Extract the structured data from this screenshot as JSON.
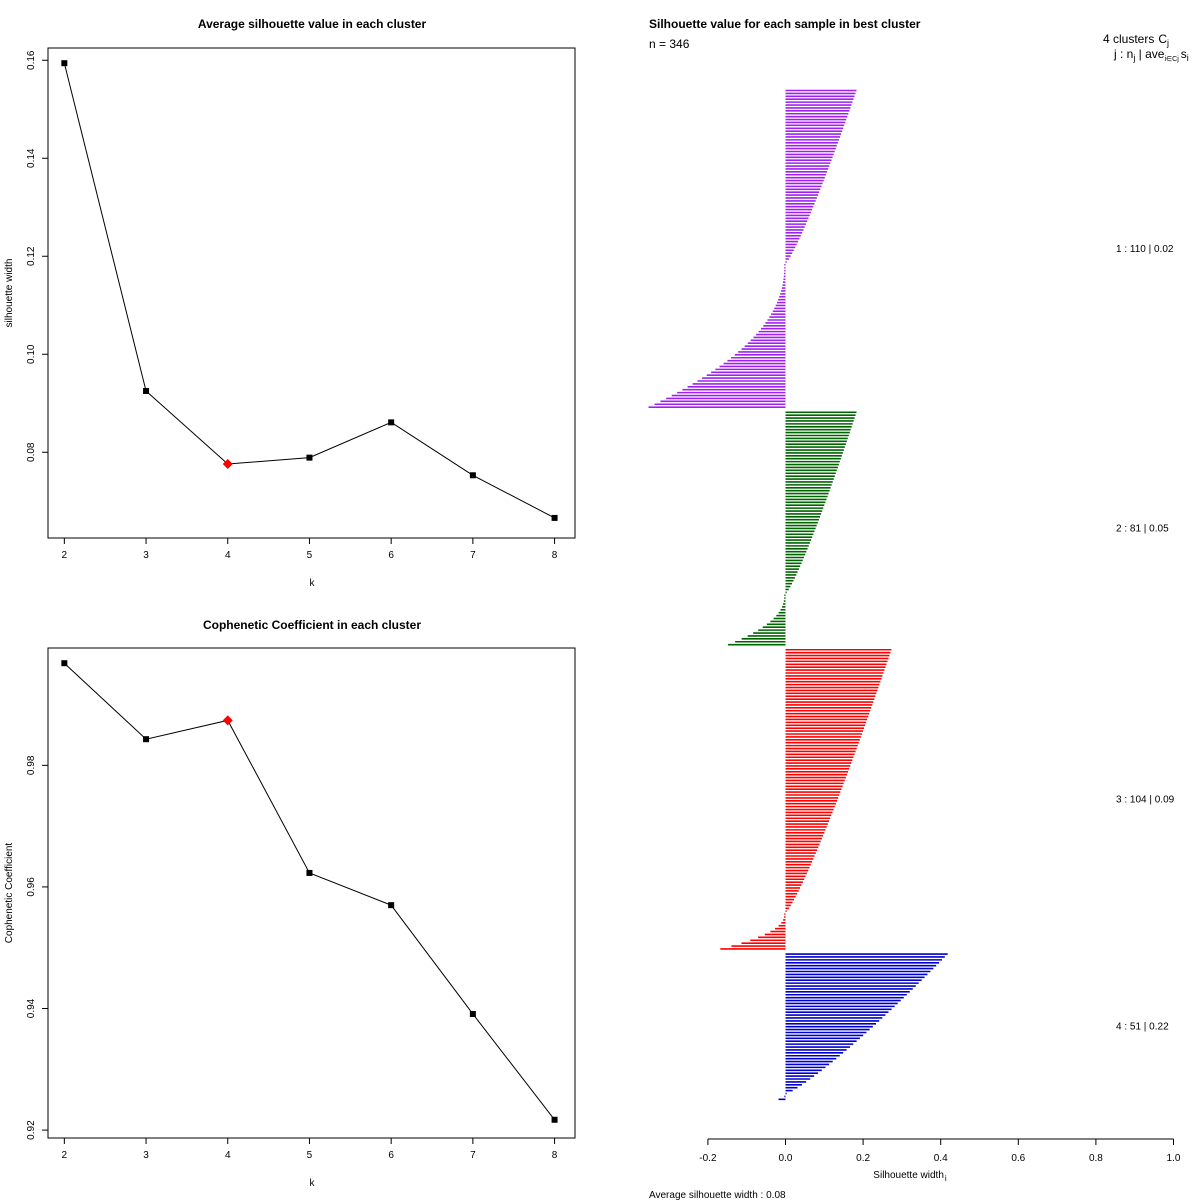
{
  "chart_data": [
    {
      "type": "line",
      "title": "Average silhouette value in each cluster",
      "xlabel": "k",
      "ylabel": "silhouette width",
      "x": [
        2,
        3,
        4,
        5,
        6,
        7,
        8
      ],
      "values": [
        0.1594,
        0.0925,
        0.0776,
        0.0789,
        0.0861,
        0.0753,
        0.0666
      ],
      "highlight_k": 4,
      "xlim": [
        1.8,
        8.25
      ],
      "ylim": [
        0.0625,
        0.1625
      ],
      "x_ticks": [
        2,
        3,
        4,
        5,
        6,
        7,
        8
      ],
      "y_ticks": [
        0.08,
        0.1,
        0.12,
        0.14,
        0.16
      ],
      "y_tick_labels": [
        "0.08",
        "0.10",
        "0.12",
        "0.14",
        "0.16"
      ],
      "colors": {
        "line": "#000000",
        "point": "#000000",
        "highlight": "#ff0000"
      }
    },
    {
      "type": "line",
      "title": "Cophenetic Coefficient in each cluster",
      "xlabel": "k",
      "ylabel": "Cophenetic Coefficient",
      "x": [
        2,
        3,
        4,
        5,
        6,
        7,
        8
      ],
      "values": [
        0.9968,
        0.9843,
        0.9874,
        0.9623,
        0.957,
        0.9391,
        0.9217
      ],
      "highlight_k": 4,
      "xlim": [
        1.8,
        8.25
      ],
      "ylim": [
        0.9187,
        0.9993
      ],
      "x_ticks": [
        2,
        3,
        4,
        5,
        6,
        7,
        8
      ],
      "y_ticks": [
        0.92,
        0.94,
        0.96,
        0.98
      ],
      "y_tick_labels": [
        "0.92",
        "0.94",
        "0.96",
        "0.98"
      ],
      "colors": {
        "line": "#000000",
        "point": "#000000",
        "highlight": "#ff0000"
      }
    },
    {
      "type": "bar",
      "orientation": "horizontal",
      "title": "Silhouette value for each sample in best cluster",
      "n_label": "n = 346",
      "header_line1": "4 clusters",
      "header_c": "C",
      "header_c_sub": "j",
      "header_line2": "j :  n",
      "header_n_sub": "j",
      "header_line2b": " | ave",
      "header_ave_sub": "i∈Cj",
      "header_s": "s",
      "header_s_sub": "i",
      "xlabel": "Silhouette width",
      "xlabel_sub": "i",
      "xlim": [
        -0.2,
        1.0
      ],
      "x_ticks": [
        -0.2,
        0.0,
        0.2,
        0.4,
        0.6,
        0.8,
        1.0
      ],
      "x_tick_labels": [
        "-0.2",
        "0.0",
        "0.2",
        "0.4",
        "0.6",
        "0.8",
        "1.0"
      ],
      "footer": "Average silhouette width :  0.08",
      "clusters": [
        {
          "id": 1,
          "n": 110,
          "avg": "0.02",
          "label": "1 :   110  |  0.02",
          "color": "#a020f0",
          "max": 0.18,
          "min": -0.35,
          "n_pos": 60
        },
        {
          "id": 2,
          "n": 81,
          "avg": "0.05",
          "label": "2 :   81  |  0.05",
          "color": "#006400",
          "max": 0.18,
          "min": -0.145,
          "n_pos": 63
        },
        {
          "id": 3,
          "n": 104,
          "avg": "0.09",
          "label": "3 :   104  |  0.09",
          "color": "#ff0000",
          "max": 0.27,
          "min": -0.165,
          "n_pos": 91
        },
        {
          "id": 4,
          "n": 51,
          "avg": "0.22",
          "label": "4 :   51  |  0.22",
          "color": "#0000cd",
          "max": 0.415,
          "min": -0.015,
          "n_pos": 49
        }
      ]
    }
  ]
}
